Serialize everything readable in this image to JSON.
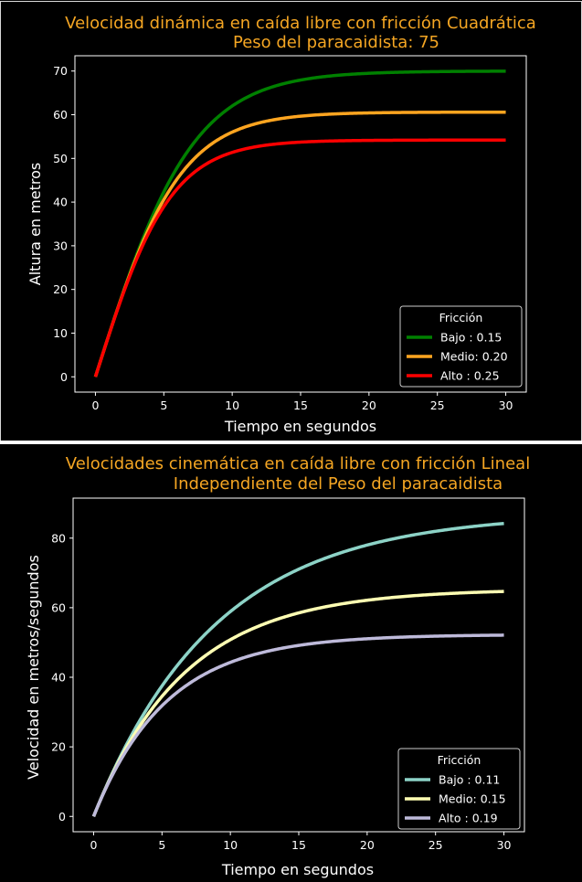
{
  "chart_data": [
    {
      "type": "line",
      "title_line1": "Velocidad dinámica en caída libre con fricción Cuadrática",
      "title_line2": "Peso del paracaidista: 75",
      "xlabel": "Tiempo en segundos",
      "ylabel": "Altura en metros",
      "xlim": [
        -1.5,
        31.5
      ],
      "ylim": [
        -3.5,
        73.5
      ],
      "xticks": [
        0,
        5,
        10,
        15,
        20,
        25,
        30
      ],
      "yticks": [
        0,
        10,
        20,
        30,
        40,
        50,
        60,
        70
      ],
      "grid": false,
      "legend": {
        "title": "Fricción",
        "placement": "lower-right"
      },
      "model": "quadratic",
      "series": [
        {
          "name": "Bajo : 0.15",
          "color": "#008000",
          "terminal": 70.0
        },
        {
          "name": "Medio: 0.20",
          "color": "#ffa520",
          "terminal": 60.6
        },
        {
          "name": "Alto : 0.25",
          "color": "#ff0000",
          "terminal": 54.2
        }
      ]
    },
    {
      "type": "line",
      "title_line1": "Velocidades cinemática en caída libre con fricción Lineal",
      "title_line2": "Independiente del Peso del paracaidista",
      "xlabel": "Tiempo en segundos",
      "ylabel": "Velocidad en metros/segundos",
      "xlim": [
        -1.5,
        31.5
      ],
      "ylim": [
        -4.4,
        91.5
      ],
      "xticks": [
        0,
        5,
        10,
        15,
        20,
        25,
        30
      ],
      "yticks": [
        0,
        20,
        40,
        60,
        80
      ],
      "grid": false,
      "legend": {
        "title": "Fricción",
        "placement": "lower-right"
      },
      "model": "linear",
      "series": [
        {
          "name": "Bajo : 0.11",
          "color": "#8dd3c7",
          "terminal": 87.2
        },
        {
          "name": "Medio: 0.15",
          "color": "#ffffb3",
          "terminal": 65.4
        },
        {
          "name": "Alto : 0.19",
          "color": "#bebada",
          "terminal": 52.3
        }
      ]
    }
  ]
}
